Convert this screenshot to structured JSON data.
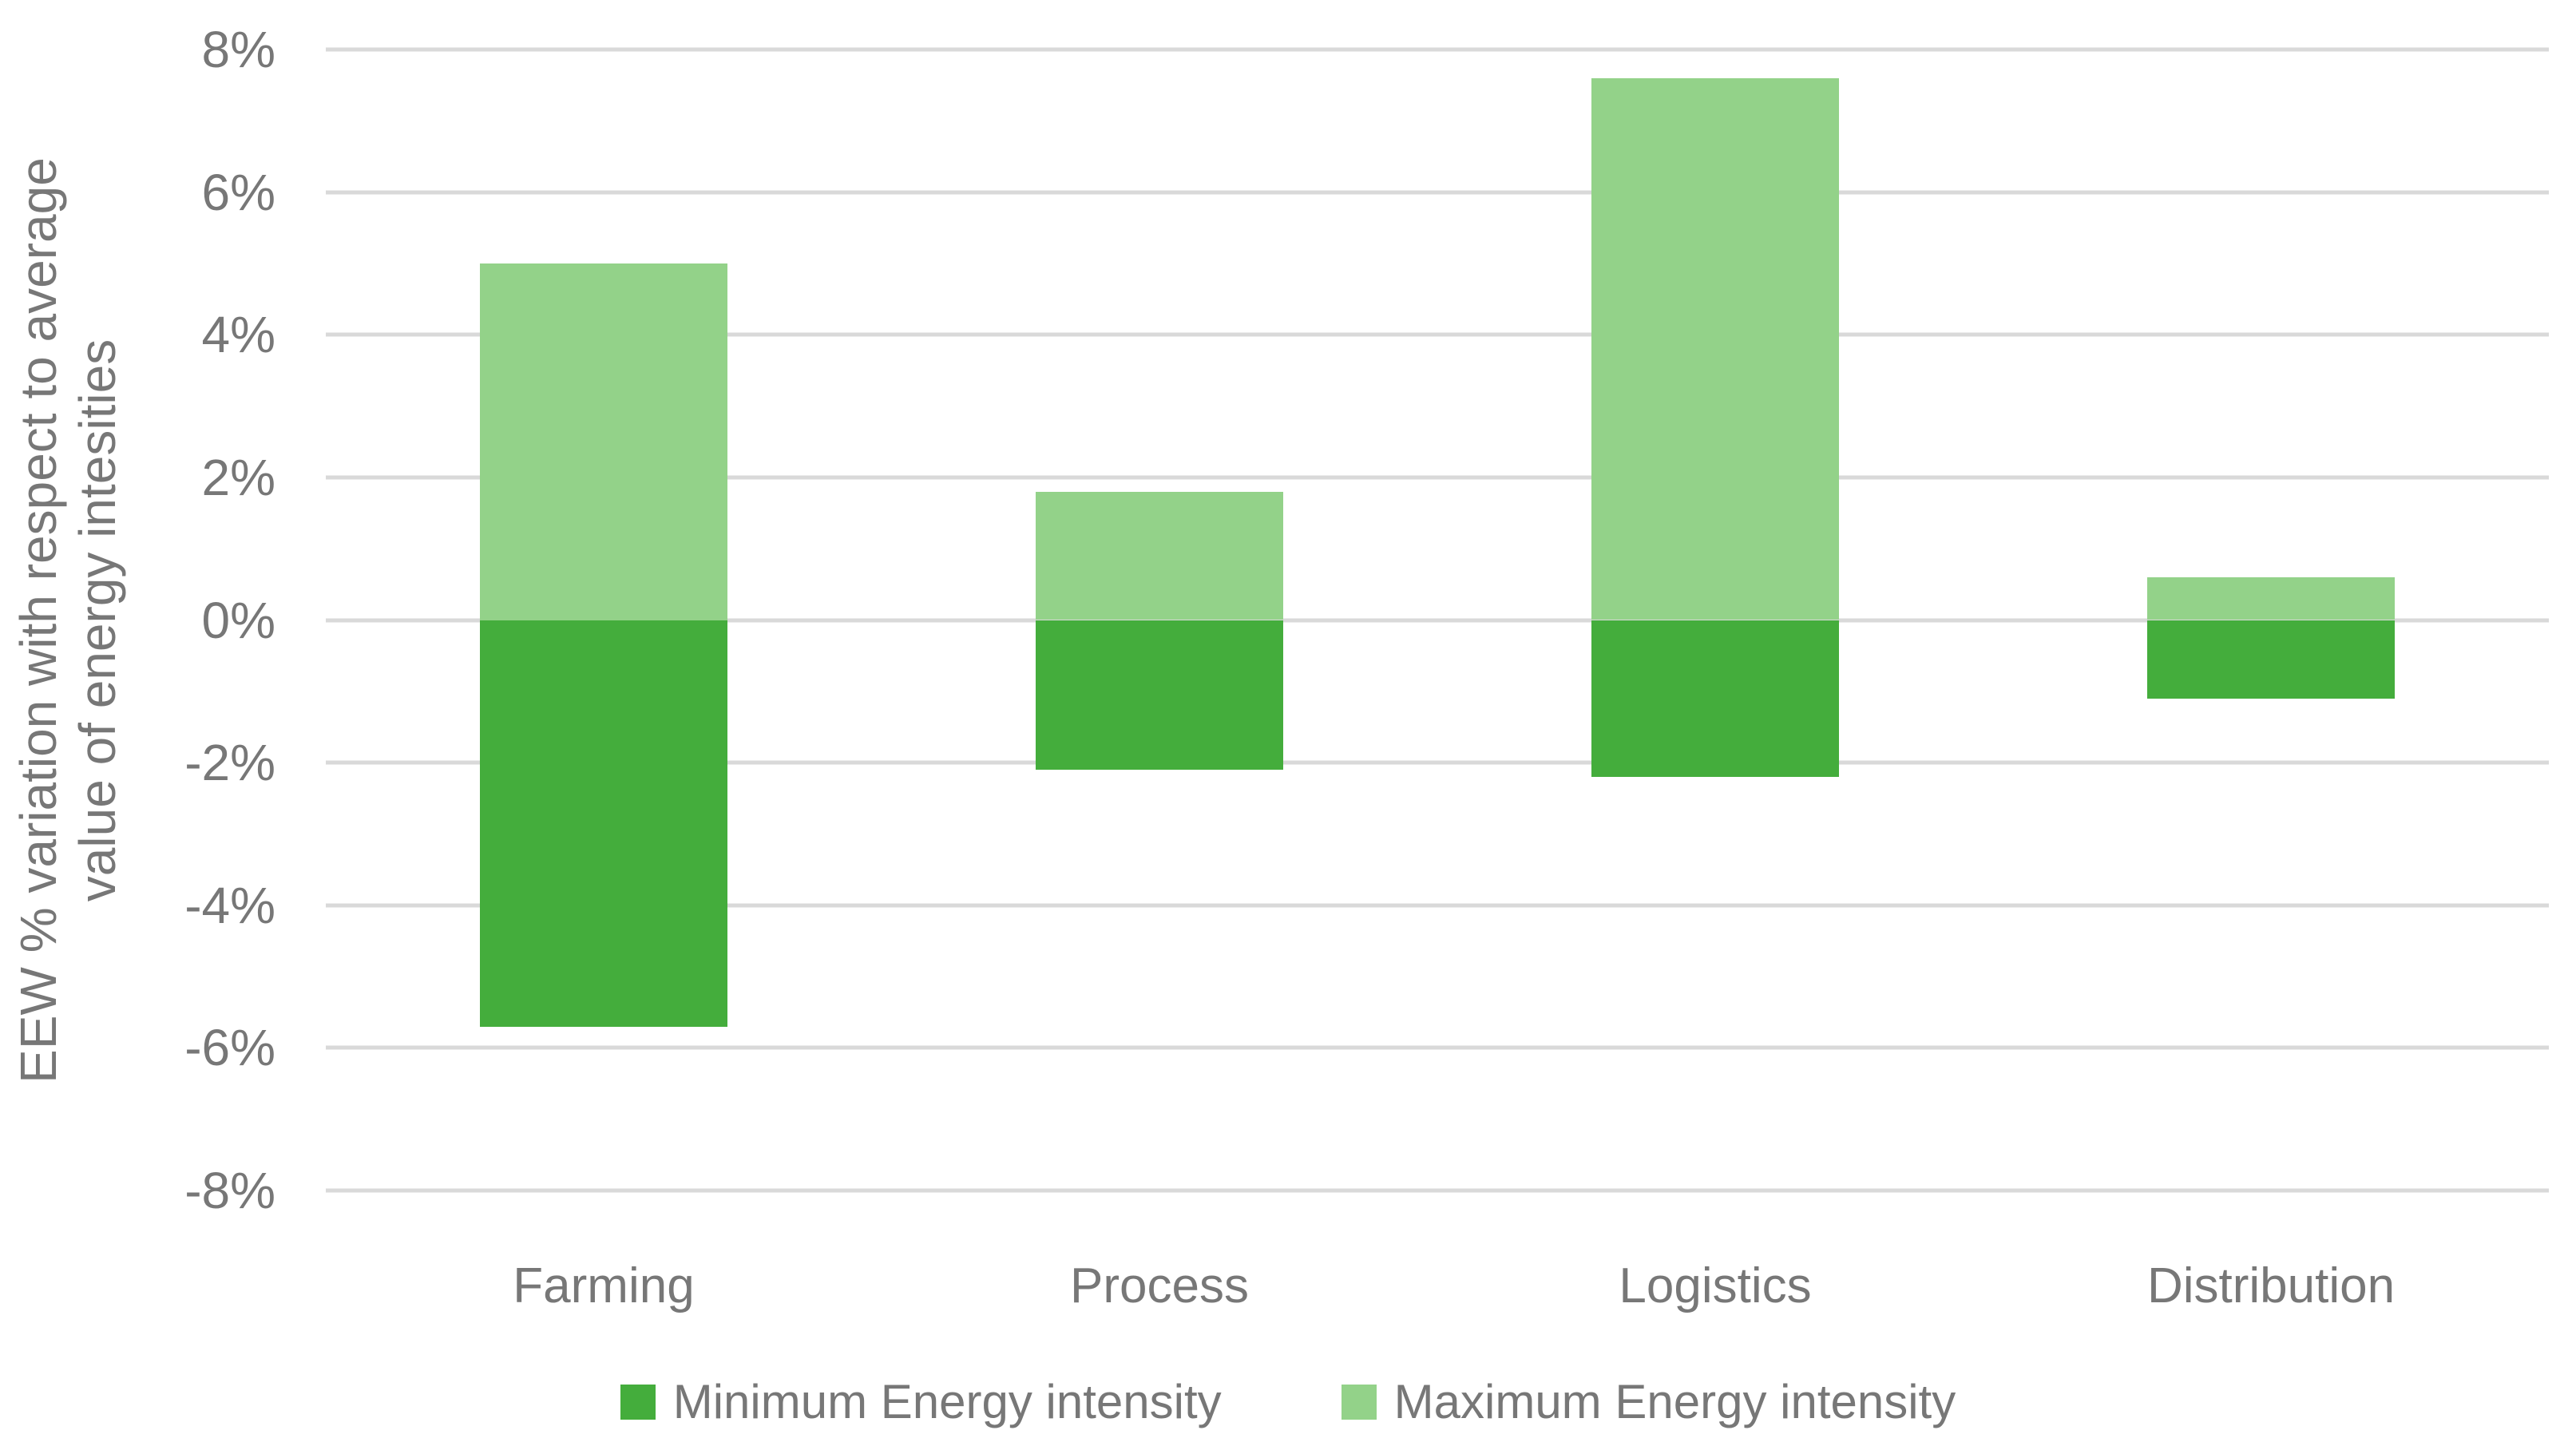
{
  "chart_data": {
    "type": "bar",
    "subtype": "diverging-stacked-column",
    "title": "",
    "categories": [
      "Farming",
      "Process",
      "Logistics",
      "Distribution"
    ],
    "series": [
      {
        "name": "Minimum Energy intensity",
        "color": "#44AD3C",
        "values": [
          -5.7,
          -2.1,
          -2.2,
          -1.1
        ]
      },
      {
        "name": "Maximum Energy intensity",
        "color": "#93D289",
        "values": [
          5.0,
          1.8,
          7.6,
          0.6
        ]
      }
    ],
    "xlabel": "",
    "ylabel_line1": "EEW % variation with respect to average",
    "ylabel_line2": "value of energy intesities",
    "ylim": [
      -8,
      8
    ],
    "yticks": [
      {
        "value": 8,
        "label": "8%"
      },
      {
        "value": 6,
        "label": "6%"
      },
      {
        "value": 4,
        "label": "4%"
      },
      {
        "value": 2,
        "label": "2%"
      },
      {
        "value": 0,
        "label": "0%"
      },
      {
        "value": -2,
        "label": "-2%"
      },
      {
        "value": -4,
        "label": "-4%"
      },
      {
        "value": -6,
        "label": "-6%"
      },
      {
        "value": -8,
        "label": "-8%"
      }
    ],
    "grid": true,
    "gridline_color": "#d9d9d9",
    "text_color": "#777777",
    "background_color": "#ffffff",
    "legend_position": "bottom"
  }
}
